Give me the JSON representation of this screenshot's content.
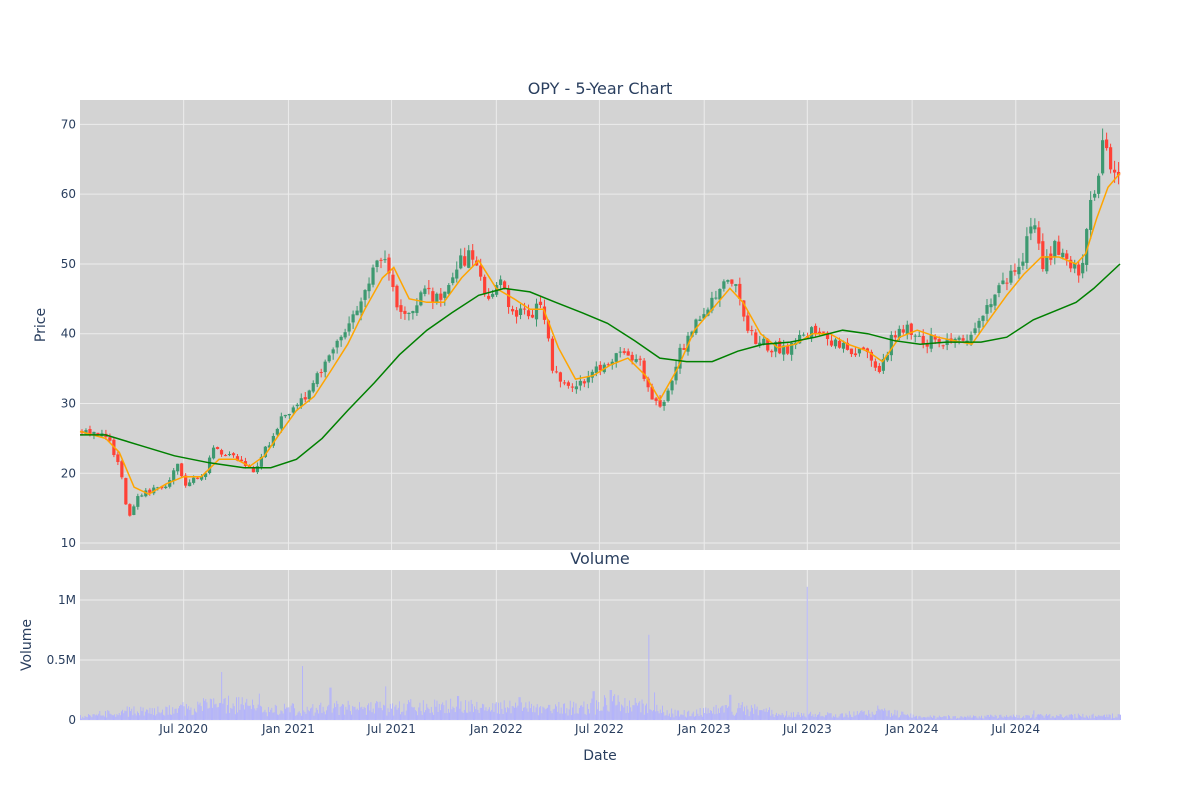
{
  "chart_data": [
    {
      "type": "candlestick",
      "title": "OPY - 5-Year Chart",
      "xlabel": "",
      "ylabel": "Price",
      "ylim": [
        9,
        73.5
      ],
      "y_ticks": [
        10,
        20,
        30,
        40,
        50,
        60,
        70
      ],
      "grid": true,
      "increasing_color": "#3d9970",
      "decreasing_color": "#ff4136",
      "price_keyframes": [
        [
          "2020-01-01",
          26.0
        ],
        [
          "2020-02-01",
          25.5
        ],
        [
          "2020-02-20",
          24.5
        ],
        [
          "2020-03-10",
          20.0
        ],
        [
          "2020-03-22",
          13.0
        ],
        [
          "2020-04-05",
          16.5
        ],
        [
          "2020-05-01",
          17.5
        ],
        [
          "2020-06-01",
          18.5
        ],
        [
          "2020-06-15",
          22.0
        ],
        [
          "2020-07-01",
          18.5
        ],
        [
          "2020-08-01",
          19.5
        ],
        [
          "2020-08-20",
          23.5
        ],
        [
          "2020-10-01",
          22.0
        ],
        [
          "2020-10-25",
          20.0
        ],
        [
          "2020-11-15",
          23.0
        ],
        [
          "2020-12-15",
          27.5
        ],
        [
          "2021-01-15",
          30.5
        ],
        [
          "2021-02-05",
          31.5
        ],
        [
          "2021-03-01",
          36.0
        ],
        [
          "2021-04-05",
          40.5
        ],
        [
          "2021-05-10",
          45.5
        ],
        [
          "2021-06-01",
          49.5
        ],
        [
          "2021-06-20",
          51.0
        ],
        [
          "2021-07-05",
          44.0
        ],
        [
          "2021-08-01",
          43.5
        ],
        [
          "2021-08-25",
          46.0
        ],
        [
          "2021-09-25",
          44.5
        ],
        [
          "2021-10-25",
          50.0
        ],
        [
          "2021-11-20",
          52.0
        ],
        [
          "2021-12-10",
          44.5
        ],
        [
          "2022-01-05",
          48.0
        ],
        [
          "2022-01-25",
          43.0
        ],
        [
          "2022-02-25",
          42.5
        ],
        [
          "2022-03-20",
          44.5
        ],
        [
          "2022-04-05",
          35.5
        ],
        [
          "2022-05-01",
          32.0
        ],
        [
          "2022-06-01",
          33.5
        ],
        [
          "2022-07-01",
          35.0
        ],
        [
          "2022-08-01",
          37.5
        ],
        [
          "2022-09-05",
          36.0
        ],
        [
          "2022-09-25",
          31.5
        ],
        [
          "2022-10-15",
          29.5
        ],
        [
          "2022-11-15",
          37.0
        ],
        [
          "2022-12-15",
          42.0
        ],
        [
          "2023-01-10",
          44.5
        ],
        [
          "2023-02-01",
          47.5
        ],
        [
          "2023-02-20",
          47.0
        ],
        [
          "2023-03-15",
          40.0
        ],
        [
          "2023-04-15",
          38.5
        ],
        [
          "2023-05-20",
          37.5
        ],
        [
          "2023-06-20",
          39.5
        ],
        [
          "2023-07-20",
          41.0
        ],
        [
          "2023-08-10",
          38.5
        ],
        [
          "2023-09-10",
          38.0
        ],
        [
          "2023-10-15",
          36.5
        ],
        [
          "2023-11-01",
          34.5
        ],
        [
          "2023-11-20",
          39.0
        ],
        [
          "2023-12-20",
          41.0
        ],
        [
          "2024-01-20",
          39.0
        ],
        [
          "2024-03-01",
          39.0
        ],
        [
          "2024-04-01",
          38.5
        ],
        [
          "2024-05-01",
          43.5
        ],
        [
          "2024-06-01",
          46.5
        ],
        [
          "2024-07-10",
          50.0
        ],
        [
          "2024-07-25",
          56.5
        ],
        [
          "2024-08-15",
          49.0
        ],
        [
          "2024-09-01",
          52.5
        ],
        [
          "2024-09-20",
          50.5
        ],
        [
          "2024-10-20",
          49.0
        ],
        [
          "2024-11-05",
          58.0
        ],
        [
          "2024-11-20",
          62.5
        ],
        [
          "2024-11-28",
          68.5
        ],
        [
          "2024-12-10",
          63.0
        ],
        [
          "2024-12-31",
          64.5
        ]
      ],
      "series": [
        {
          "type": "line",
          "color": "#ffa500",
          "points": [
            [
              "2020-01-01",
              26.0
            ],
            [
              "2020-02-15",
              25.0
            ],
            [
              "2020-03-10",
              23.0
            ],
            [
              "2020-04-05",
              18.0
            ],
            [
              "2020-05-01",
              17.0
            ],
            [
              "2020-06-01",
              18.5
            ],
            [
              "2020-07-01",
              19.5
            ],
            [
              "2020-08-01",
              19.5
            ],
            [
              "2020-09-01",
              22.0
            ],
            [
              "2020-10-01",
              22.0
            ],
            [
              "2020-10-25",
              21.0
            ],
            [
              "2020-11-20",
              22.5
            ],
            [
              "2020-12-15",
              25.5
            ],
            [
              "2021-01-15",
              29.0
            ],
            [
              "2021-02-15",
              31.0
            ],
            [
              "2021-03-15",
              34.5
            ],
            [
              "2021-04-15",
              38.5
            ],
            [
              "2021-05-15",
              43.5
            ],
            [
              "2021-06-15",
              48.0
            ],
            [
              "2021-07-05",
              49.5
            ],
            [
              "2021-08-01",
              45.0
            ],
            [
              "2021-09-01",
              44.5
            ],
            [
              "2021-10-01",
              44.5
            ],
            [
              "2021-11-01",
              48.0
            ],
            [
              "2021-12-01",
              50.5
            ],
            [
              "2022-01-01",
              46.5
            ],
            [
              "2022-02-01",
              45.0
            ],
            [
              "2022-03-01",
              43.5
            ],
            [
              "2022-03-25",
              43.5
            ],
            [
              "2022-04-20",
              38.0
            ],
            [
              "2022-05-20",
              33.5
            ],
            [
              "2022-06-20",
              34.0
            ],
            [
              "2022-07-20",
              35.5
            ],
            [
              "2022-08-20",
              36.5
            ],
            [
              "2022-09-20",
              34.0
            ],
            [
              "2022-10-15",
              30.5
            ],
            [
              "2022-11-15",
              35.0
            ],
            [
              "2022-12-15",
              40.5
            ],
            [
              "2023-01-15",
              43.5
            ],
            [
              "2023-02-15",
              46.5
            ],
            [
              "2023-03-10",
              44.5
            ],
            [
              "2023-04-10",
              40.0
            ],
            [
              "2023-05-10",
              38.0
            ],
            [
              "2023-06-10",
              38.5
            ],
            [
              "2023-07-10",
              40.0
            ],
            [
              "2023-08-10",
              40.0
            ],
            [
              "2023-09-10",
              38.5
            ],
            [
              "2023-10-15",
              37.5
            ],
            [
              "2023-11-10",
              36.0
            ],
            [
              "2023-12-10",
              39.5
            ],
            [
              "2024-01-10",
              40.5
            ],
            [
              "2024-02-15",
              39.5
            ],
            [
              "2024-03-15",
              39.0
            ],
            [
              "2024-04-15",
              38.5
            ],
            [
              "2024-05-15",
              42.0
            ],
            [
              "2024-06-15",
              45.5
            ],
            [
              "2024-07-15",
              48.5
            ],
            [
              "2024-08-15",
              51.0
            ],
            [
              "2024-09-15",
              51.0
            ],
            [
              "2024-10-15",
              50.0
            ],
            [
              "2024-11-01",
              51.5
            ],
            [
              "2024-11-20",
              56.5
            ],
            [
              "2024-12-10",
              61.0
            ],
            [
              "2024-12-31",
              63.0
            ]
          ]
        },
        {
          "type": "line",
          "color": "#008000",
          "points": [
            [
              "2020-01-01",
              25.5
            ],
            [
              "2020-02-15",
              25.5
            ],
            [
              "2020-04-15",
              24.0
            ],
            [
              "2020-06-15",
              22.5
            ],
            [
              "2020-08-15",
              21.5
            ],
            [
              "2020-10-15",
              20.8
            ],
            [
              "2020-12-01",
              20.8
            ],
            [
              "2021-01-15",
              22.0
            ],
            [
              "2021-03-01",
              25.0
            ],
            [
              "2021-04-15",
              29.0
            ],
            [
              "2021-06-01",
              33.0
            ],
            [
              "2021-07-15",
              37.0
            ],
            [
              "2021-09-01",
              40.5
            ],
            [
              "2021-10-15",
              43.0
            ],
            [
              "2021-12-01",
              45.5
            ],
            [
              "2022-01-15",
              46.5
            ],
            [
              "2022-03-01",
              46.0
            ],
            [
              "2022-04-15",
              44.5
            ],
            [
              "2022-06-01",
              43.0
            ],
            [
              "2022-07-15",
              41.5
            ],
            [
              "2022-09-01",
              39.0
            ],
            [
              "2022-10-15",
              36.5
            ],
            [
              "2022-12-01",
              36.0
            ],
            [
              "2023-01-15",
              36.0
            ],
            [
              "2023-03-01",
              37.5
            ],
            [
              "2023-04-15",
              38.5
            ],
            [
              "2023-06-01",
              38.8
            ],
            [
              "2023-07-15",
              39.5
            ],
            [
              "2023-09-01",
              40.5
            ],
            [
              "2023-10-15",
              40.0
            ],
            [
              "2023-12-01",
              39.0
            ],
            [
              "2024-01-15",
              38.5
            ],
            [
              "2024-03-01",
              38.8
            ],
            [
              "2024-05-01",
              38.8
            ],
            [
              "2024-06-15",
              39.5
            ],
            [
              "2024-08-01",
              42.0
            ],
            [
              "2024-09-15",
              43.5
            ],
            [
              "2024-10-15",
              44.5
            ],
            [
              "2024-11-15",
              46.5
            ],
            [
              "2024-12-31",
              50.0
            ]
          ]
        }
      ]
    },
    {
      "type": "bar",
      "title": "Volume",
      "xlabel": "Date",
      "ylabel": "Volume",
      "ylim": [
        0,
        1250000
      ],
      "y_ticks": [
        {
          "value": 0,
          "label": "0"
        },
        {
          "value": 500000,
          "label": "0.5M"
        },
        {
          "value": 1000000,
          "label": "1M"
        }
      ],
      "x_ticks": [
        {
          "value": "2020-07-01",
          "label": "Jul 2020"
        },
        {
          "value": "2021-01-01",
          "label": "Jan 2021"
        },
        {
          "value": "2021-07-01",
          "label": "Jul 2021"
        },
        {
          "value": "2022-01-01",
          "label": "Jan 2022"
        },
        {
          "value": "2022-07-01",
          "label": "Jul 2022"
        },
        {
          "value": "2023-01-01",
          "label": "Jan 2023"
        },
        {
          "value": "2023-07-01",
          "label": "Jul 2023"
        },
        {
          "value": "2024-01-01",
          "label": "Jan 2024"
        },
        {
          "value": "2024-07-01",
          "label": "Jul 2024"
        }
      ],
      "xlim": [
        "2020-01-01",
        "2024-12-31"
      ],
      "bar_color": "#b0b0ff",
      "volume_keyframes": [
        [
          "2020-01-01",
          40000
        ],
        [
          "2020-03-15",
          100000
        ],
        [
          "2020-06-01",
          110000
        ],
        [
          "2020-09-15",
          200000
        ],
        [
          "2020-12-01",
          110000
        ],
        [
          "2021-03-01",
          150000
        ],
        [
          "2021-06-01",
          140000
        ],
        [
          "2021-09-01",
          160000
        ],
        [
          "2021-12-01",
          150000
        ],
        [
          "2022-03-01",
          140000
        ],
        [
          "2022-06-01",
          150000
        ],
        [
          "2022-08-15",
          210000
        ],
        [
          "2022-10-01",
          120000
        ],
        [
          "2022-12-01",
          70000
        ],
        [
          "2023-03-01",
          140000
        ],
        [
          "2023-06-01",
          60000
        ],
        [
          "2023-09-01",
          60000
        ],
        [
          "2023-11-15",
          90000
        ],
        [
          "2024-01-15",
          35000
        ],
        [
          "2024-06-01",
          40000
        ],
        [
          "2024-09-01",
          45000
        ],
        [
          "2024-12-31",
          50000
        ]
      ],
      "volume_spikes": [
        [
          "2020-09-05",
          400000
        ],
        [
          "2020-11-10",
          220000
        ],
        [
          "2021-01-25",
          450000
        ],
        [
          "2021-03-15",
          270000
        ],
        [
          "2021-06-20",
          280000
        ],
        [
          "2021-10-25",
          200000
        ],
        [
          "2022-02-10",
          190000
        ],
        [
          "2022-04-20",
          150000
        ],
        [
          "2022-06-20",
          240000
        ],
        [
          "2022-07-20",
          250000
        ],
        [
          "2022-09-25",
          710000
        ],
        [
          "2022-10-05",
          230000
        ],
        [
          "2023-02-15",
          210000
        ],
        [
          "2023-06-30",
          1110000
        ],
        [
          "2023-11-01",
          120000
        ],
        [
          "2024-08-01",
          80000
        ]
      ]
    }
  ]
}
